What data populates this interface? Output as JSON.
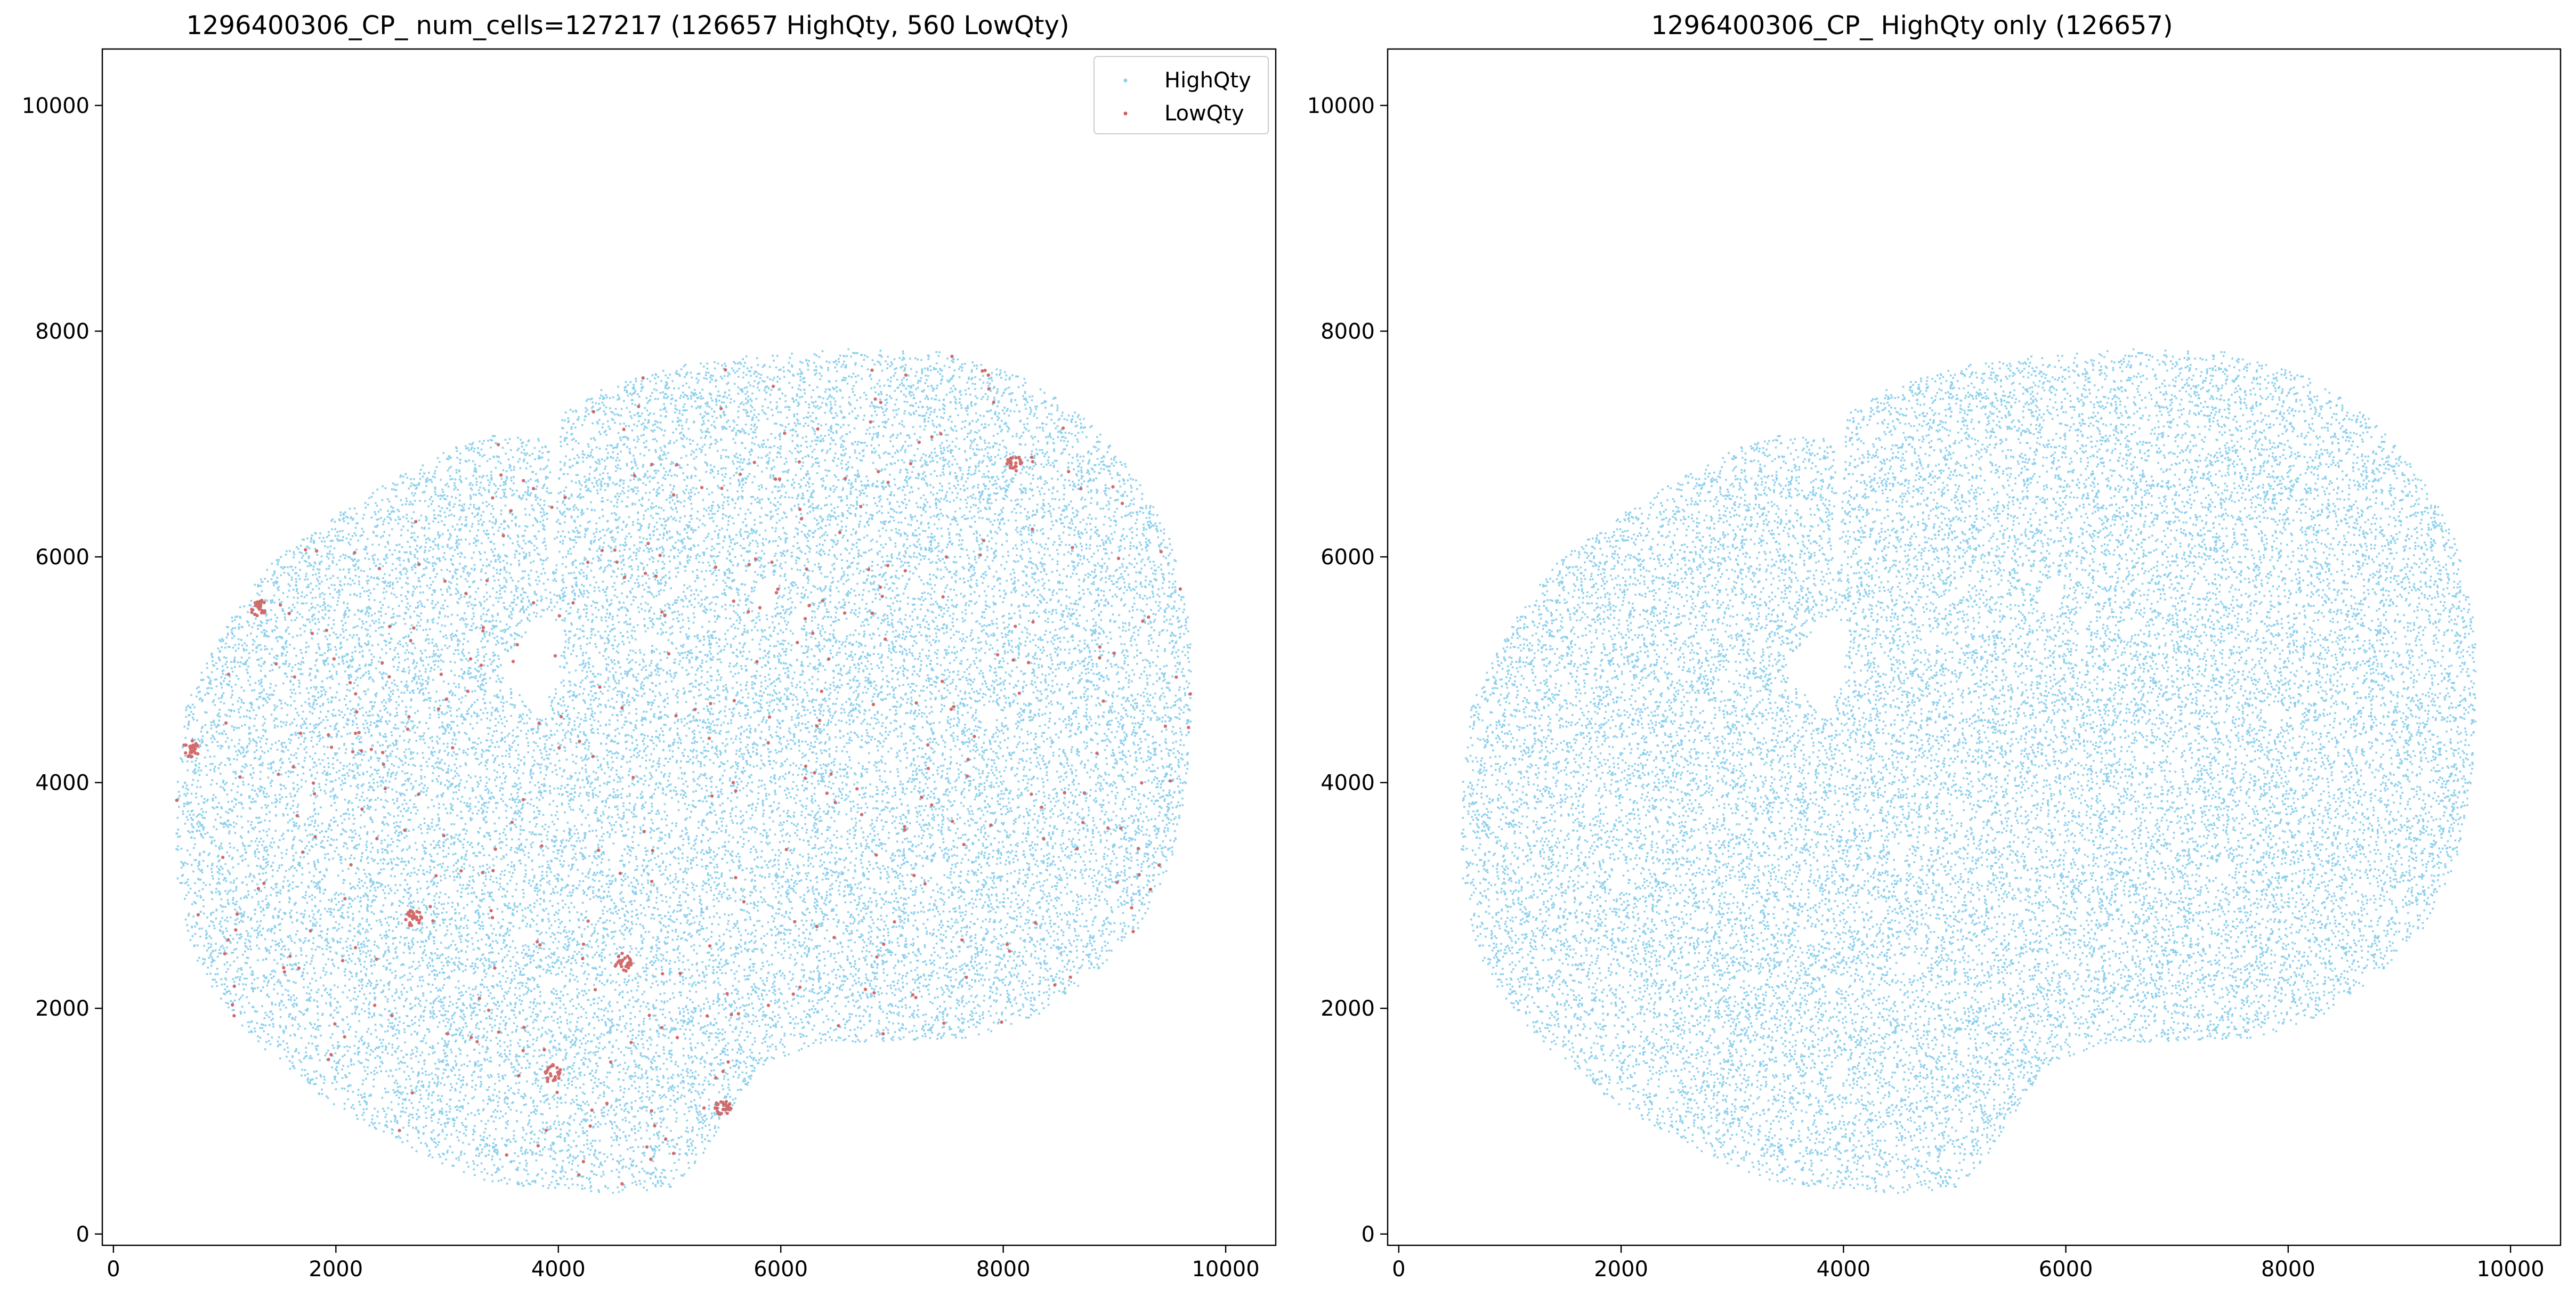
{
  "chart_data": [
    {
      "type": "scatter",
      "title": "1296400306_CP_ num_cells=127217 (126657 HighQty, 560 LowQty)",
      "xlabel": "",
      "ylabel": "",
      "xlim": [
        -100,
        10450
      ],
      "ylim": [
        -100,
        10500
      ],
      "xticks": [
        0,
        2000,
        4000,
        6000,
        8000,
        10000
      ],
      "yticks": [
        0,
        2000,
        4000,
        6000,
        8000,
        10000
      ],
      "grid": false,
      "legend": "upper right",
      "series": [
        {
          "name": "HighQty",
          "color": "#87ceeb",
          "count": 126657
        },
        {
          "name": "LowQty",
          "color": "#cd5c5c",
          "count": 560
        }
      ],
      "lowqty_clusters": [
        {
          "x": 2700,
          "y": 2800
        },
        {
          "x": 4580,
          "y": 2400
        },
        {
          "x": 3950,
          "y": 1430
        },
        {
          "x": 700,
          "y": 4300
        },
        {
          "x": 8100,
          "y": 6820
        },
        {
          "x": 1300,
          "y": 5550
        },
        {
          "x": 5480,
          "y": 1120
        }
      ]
    },
    {
      "type": "scatter",
      "title": "1296400306_CP_ HighQty only (126657)",
      "xlabel": "",
      "ylabel": "",
      "xlim": [
        -100,
        10450
      ],
      "ylim": [
        -100,
        10500
      ],
      "xticks": [
        0,
        2000,
        4000,
        6000,
        8000,
        10000
      ],
      "yticks": [
        0,
        2000,
        4000,
        6000,
        8000,
        10000
      ],
      "grid": false,
      "series": [
        {
          "name": "HighQty",
          "color": "#87ceeb",
          "count": 126657
        }
      ]
    }
  ]
}
